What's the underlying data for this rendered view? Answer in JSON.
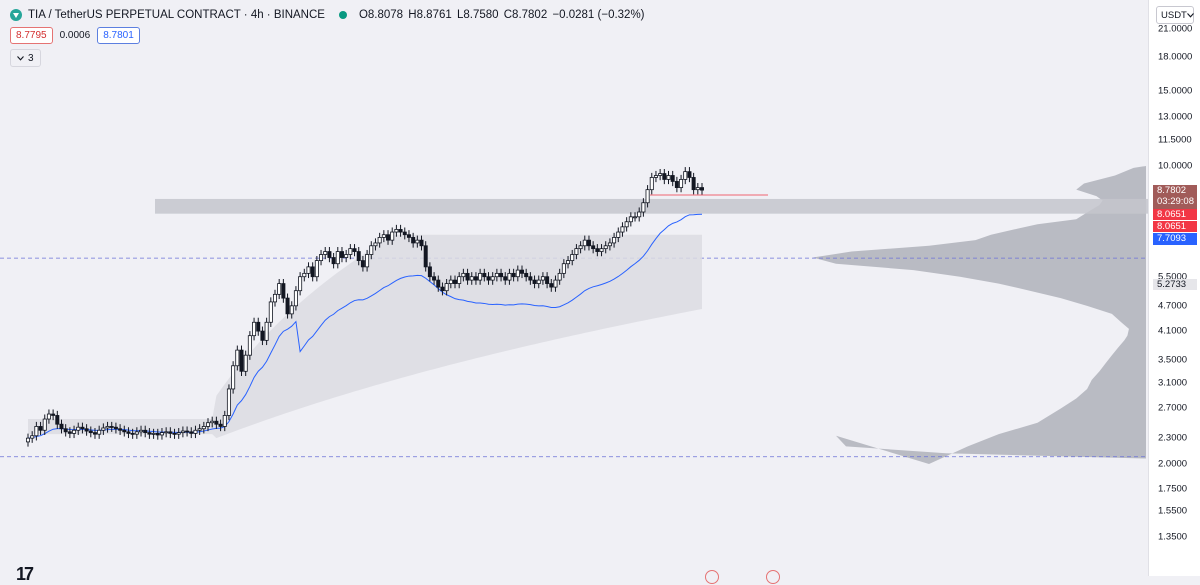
{
  "header": {
    "symbol": "TIA / TetherUS PERPETUAL CONTRACT · 4h · BINANCE",
    "open": "O8.8078",
    "high": "H8.8761",
    "low": "L8.7580",
    "close": "C8.7802",
    "change": "−0.0281 (−0.32%)",
    "bid": "8.7795",
    "spread": "0.0006",
    "ask": "8.7801",
    "indicators_count": "3",
    "currency": "USDT"
  },
  "price_axis": {
    "ticks": [
      "21.0000",
      "18.0000",
      "15.0000",
      "13.0000",
      "11.5000",
      "10.0000",
      "5.5000",
      "4.7000",
      "4.1000",
      "3.5000",
      "3.1000",
      "2.7000",
      "2.3000",
      "2.0000",
      "1.7500",
      "1.5500",
      "1.3500"
    ],
    "labels": {
      "last_price": "8.7802",
      "countdown": "03:29:08",
      "level_a": "8.0651",
      "level_b": "8.0651",
      "ma_value": "7.7093",
      "poc_value": "5.2733"
    }
  },
  "colors": {
    "up": "#131722",
    "down": "#131722",
    "ma_line": "#2962ff",
    "zone": "#c4c5cc",
    "volume_profile": "#b2b5be",
    "last_price_label": "#a15b59",
    "level_label": "#f23645",
    "ma_label": "#2962ff"
  },
  "chart_data": {
    "type": "candlestick",
    "title": "TIA / TetherUS PERPETUAL CONTRACT · 4h · BINANCE",
    "yscale": "log",
    "ylim": [
      1.3,
      21.5
    ],
    "closes": [
      2.3,
      2.33,
      2.45,
      2.4,
      2.55,
      2.62,
      2.6,
      2.48,
      2.42,
      2.38,
      2.36,
      2.4,
      2.44,
      2.42,
      2.39,
      2.37,
      2.35,
      2.4,
      2.43,
      2.45,
      2.44,
      2.42,
      2.4,
      2.38,
      2.36,
      2.35,
      2.38,
      2.4,
      2.37,
      2.35,
      2.36,
      2.34,
      2.37,
      2.38,
      2.36,
      2.35,
      2.37,
      2.39,
      2.38,
      2.36,
      2.4,
      2.42,
      2.45,
      2.5,
      2.52,
      2.48,
      2.45,
      2.6,
      3.0,
      3.4,
      3.7,
      3.3,
      3.6,
      4.0,
      4.3,
      4.1,
      3.9,
      4.3,
      4.8,
      5.0,
      5.3,
      4.9,
      4.5,
      4.7,
      5.1,
      5.5,
      5.6,
      5.8,
      5.5,
      6.0,
      6.2,
      6.3,
      6.1,
      5.9,
      6.3,
      6.1,
      6.2,
      6.4,
      6.3,
      6.0,
      5.8,
      6.2,
      6.5,
      6.6,
      6.8,
      6.9,
      6.7,
      7.0,
      7.1,
      7.0,
      6.9,
      6.8,
      6.6,
      6.7,
      6.5,
      5.8,
      5.5,
      5.4,
      5.2,
      5.1,
      5.3,
      5.4,
      5.3,
      5.5,
      5.6,
      5.4,
      5.5,
      5.4,
      5.6,
      5.5,
      5.4,
      5.5,
      5.6,
      5.5,
      5.4,
      5.6,
      5.5,
      5.7,
      5.6,
      5.5,
      5.4,
      5.3,
      5.4,
      5.5,
      5.3,
      5.2,
      5.4,
      5.6,
      5.9,
      6.0,
      6.2,
      6.4,
      6.5,
      6.7,
      6.5,
      6.4,
      6.3,
      6.4,
      6.5,
      6.6,
      6.8,
      7.0,
      7.2,
      7.4,
      7.6,
      7.6,
      7.8,
      8.2,
      8.8,
      9.4,
      9.5,
      9.6,
      9.3,
      9.5,
      9.2,
      8.9,
      9.3,
      9.7,
      9.4,
      8.8,
      8.9,
      8.78
    ],
    "ma_last": 7.7093,
    "zone": [
      7.73,
      8.37
    ],
    "dashed_levels": [
      6.08,
      2.08
    ],
    "last_price": 8.7802
  }
}
